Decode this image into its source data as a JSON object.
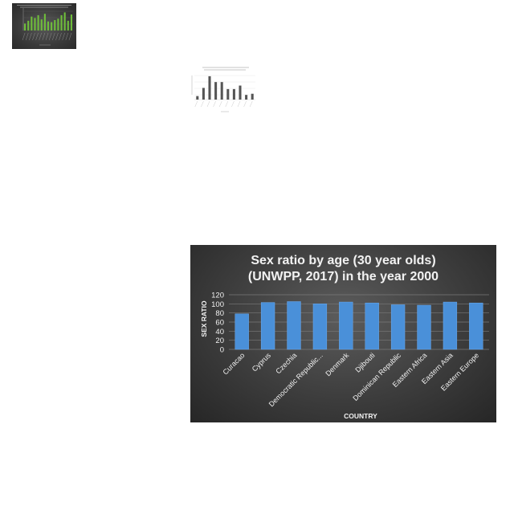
{
  "chart_data": [
    {
      "type": "bar",
      "title": "",
      "xlabel": "",
      "ylabel": "",
      "categories": [
        "",
        "",
        "",
        "",
        "",
        "",
        "",
        "",
        "",
        "",
        "",
        "",
        "",
        "",
        ""
      ],
      "values": [
        10,
        14,
        20,
        18,
        22,
        16,
        24,
        13,
        12,
        15,
        17,
        22,
        26,
        14,
        23
      ],
      "ylim": [
        0,
        30
      ],
      "bar_color": "#6fbf3a",
      "background": "#3a3a3a",
      "grid": true
    },
    {
      "type": "bar",
      "title": "",
      "xlabel": "",
      "ylabel": "",
      "categories": [
        "",
        "",
        "",
        "",
        "",
        "",
        "",
        "",
        "",
        ""
      ],
      "values": [
        3,
        10,
        20,
        15,
        15,
        9,
        9,
        12,
        4,
        5
      ],
      "ylim": [
        0,
        22
      ],
      "bar_color": "#555555",
      "background": "#ffffff",
      "grid": true
    },
    {
      "type": "bar",
      "title_line1": "Sex ratio by age (30 year olds)",
      "title_line2": "(UNWPP, 2017) in the year 2000",
      "xlabel": "COUNTRY",
      "ylabel": "SEX RATIO",
      "categories": [
        "Curacao",
        "Cyprus",
        "Czechia",
        "Democratic Republic...",
        "Denmark",
        "Djibouti",
        "Dominican Republic",
        "Eastern Africa",
        "Eastern Asia",
        "Eastern Europe"
      ],
      "values": [
        78,
        103,
        105,
        100,
        104,
        102,
        98,
        97,
        104,
        102
      ],
      "yticks": [
        0,
        20,
        40,
        60,
        80,
        100,
        120
      ],
      "ylim": [
        0,
        120
      ],
      "grid": true,
      "bar_color": "#4a90d9",
      "background": "#3d3d3d"
    }
  ]
}
